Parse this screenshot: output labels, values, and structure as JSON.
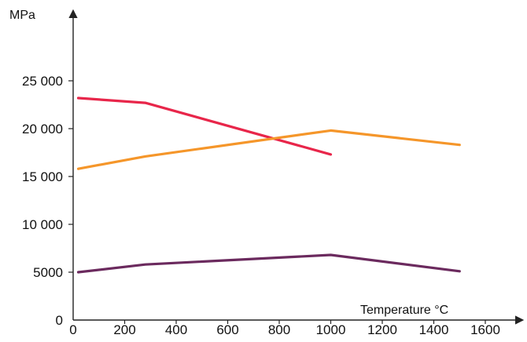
{
  "chart_data": {
    "type": "line",
    "ylabel": "MPa",
    "xlabel": "Temperature °C",
    "xlim": [
      0,
      1600
    ],
    "ylim": [
      0,
      25000
    ],
    "x_ticks": [
      0,
      200,
      400,
      600,
      800,
      1000,
      1200,
      1400,
      1600
    ],
    "x_tick_labels": [
      "0",
      "200",
      "400",
      "600",
      "800",
      "1000",
      "1200",
      "1400",
      "1600"
    ],
    "y_ticks": [
      0,
      5000,
      10000,
      15000,
      20000,
      25000
    ],
    "y_tick_labels": [
      "0",
      "5000",
      "10 000",
      "15 000",
      "20 000",
      "25 000"
    ],
    "grid": false,
    "legend": "none",
    "series": [
      {
        "color": "#e8264a",
        "points": [
          [
            20,
            23200
          ],
          [
            280,
            22700
          ],
          [
            1000,
            17300
          ]
        ]
      },
      {
        "color": "#f5962a",
        "points": [
          [
            20,
            15800
          ],
          [
            280,
            17100
          ],
          [
            1000,
            19800
          ],
          [
            1500,
            18300
          ]
        ]
      },
      {
        "color": "#6b2a5e",
        "points": [
          [
            20,
            5000
          ],
          [
            280,
            5800
          ],
          [
            1000,
            6800
          ],
          [
            1500,
            5100
          ]
        ]
      }
    ]
  }
}
